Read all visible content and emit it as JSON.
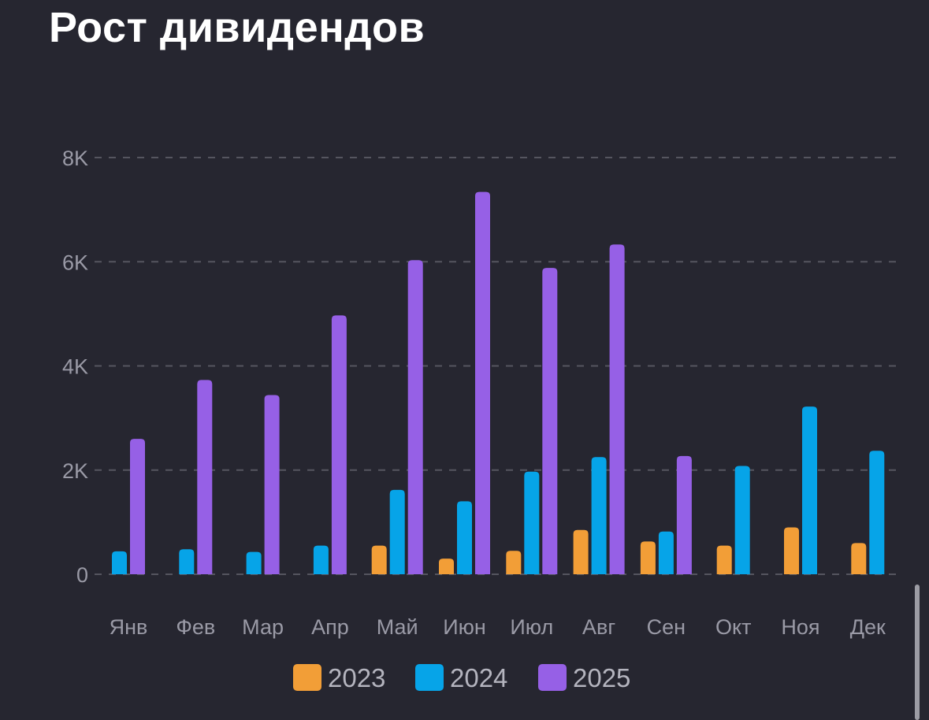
{
  "title": "Рост дивидендов",
  "chart_data": {
    "type": "bar",
    "title": "Рост дивидендов",
    "xlabel": "",
    "ylabel": "",
    "ylim": [
      0,
      8000
    ],
    "yticks": [
      0,
      2000,
      4000,
      6000,
      8000
    ],
    "ytick_labels": [
      "0",
      "2K",
      "4K",
      "6K",
      "8K"
    ],
    "grid": true,
    "legend_position": "bottom",
    "categories": [
      "Янв",
      "Фев",
      "Мар",
      "Апр",
      "Май",
      "Июн",
      "Июл",
      "Авг",
      "Сен",
      "Окт",
      "Ноя",
      "Дек"
    ],
    "series": [
      {
        "name": "2023",
        "color": "#f29e37",
        "values": [
          null,
          null,
          null,
          null,
          550,
          300,
          450,
          850,
          630,
          550,
          900,
          600
        ]
      },
      {
        "name": "2024",
        "color": "#06a4e8",
        "values": [
          440,
          480,
          430,
          550,
          1620,
          1400,
          1970,
          2250,
          820,
          2080,
          3220,
          2370
        ]
      },
      {
        "name": "2025",
        "color": "#9660e6",
        "values": [
          2600,
          3730,
          3440,
          4970,
          6030,
          7340,
          5880,
          6330,
          2270,
          null,
          null,
          null
        ]
      }
    ]
  }
}
